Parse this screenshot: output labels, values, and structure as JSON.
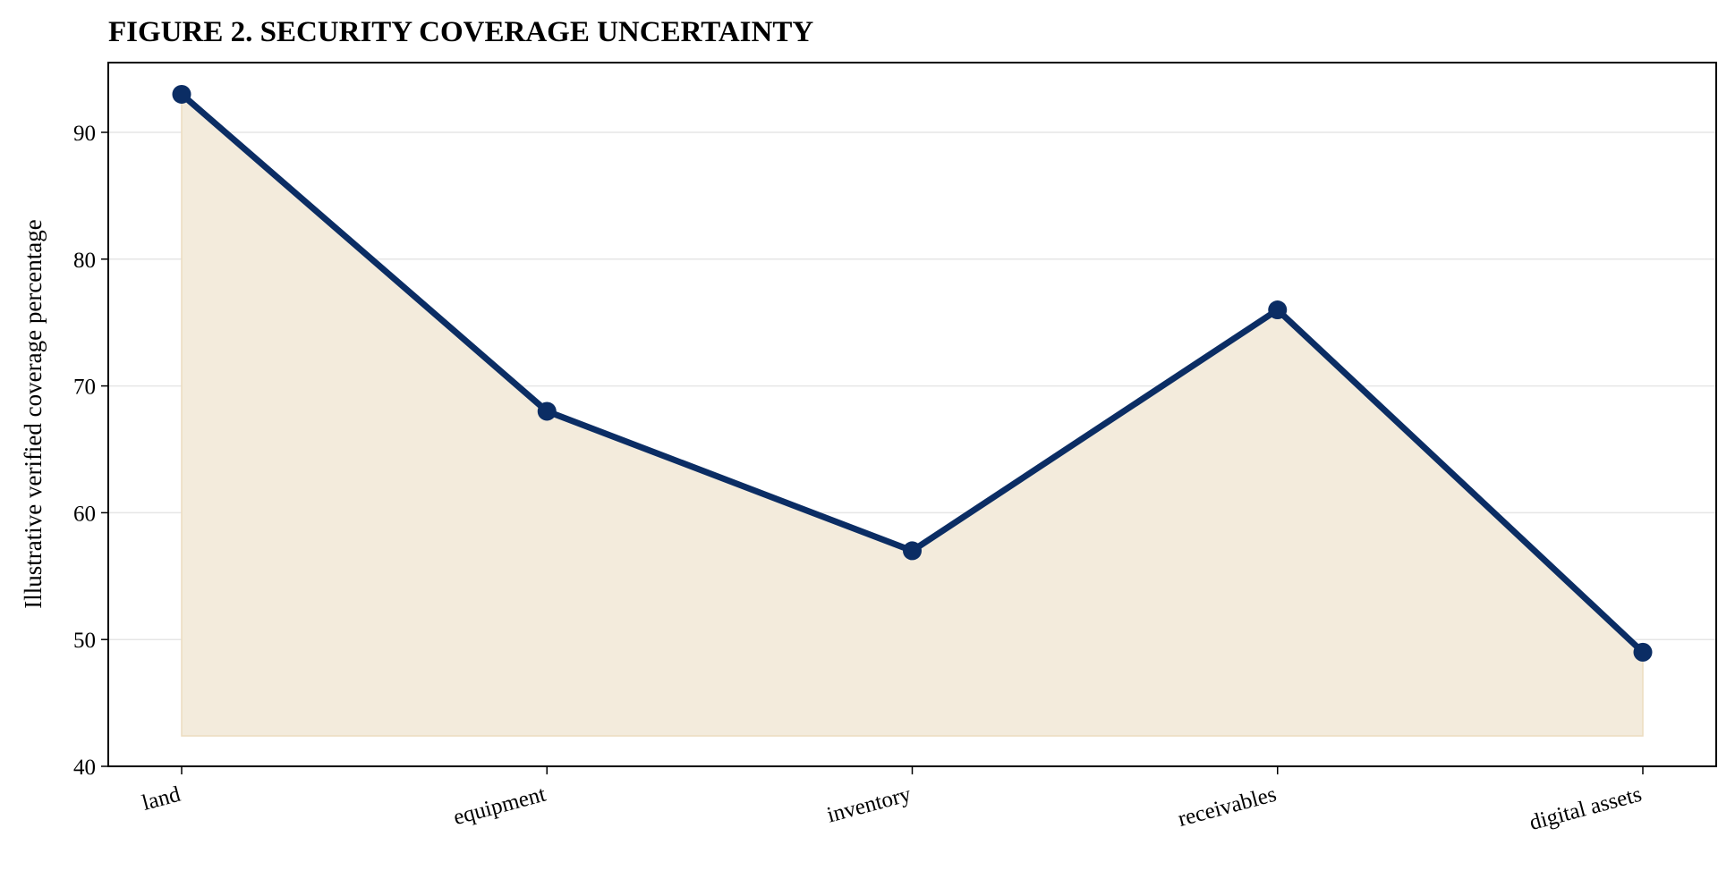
{
  "chart_data": {
    "type": "line",
    "title": "FIGURE 2. SECURITY COVERAGE UNCERTAINTY",
    "xlabel": "",
    "ylabel": "Illustrative verified coverage percentage",
    "categories": [
      "land",
      "equipment",
      "inventory",
      "receivables",
      "digital assets"
    ],
    "series": [
      {
        "values": [
          93,
          68,
          57,
          76,
          49
        ]
      }
    ],
    "ylim": [
      40,
      95.5
    ],
    "yticks": [
      40,
      50,
      60,
      70,
      80,
      90
    ],
    "fill_baseline": 42.4,
    "grid": "horizontal",
    "x_tick_rotation": "tilted",
    "colors": {
      "line": "#0b2d64",
      "marker": "#0b2d64",
      "fill": "#f3ebdc",
      "fill_edge": "#ecdcbf",
      "grid": "#e6e6e6",
      "axis": "#000000"
    }
  }
}
